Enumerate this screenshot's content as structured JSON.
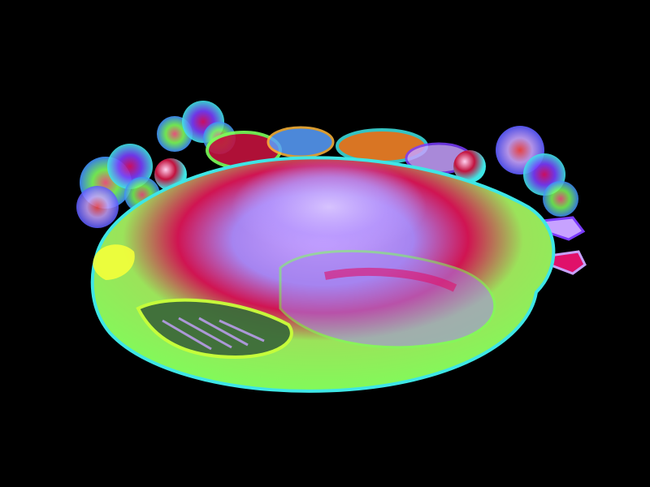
{
  "scene": {
    "subject": "roast-turkey-psychedelic-illustration",
    "background_color": "#000000",
    "palette": {
      "green": "#7CFF5A",
      "lime": "#C8FF3A",
      "magenta": "#E0106A",
      "crimson": "#C2123E",
      "lavender": "#C7A2FF",
      "violet": "#7B3CFF",
      "cyan": "#3EE6E6",
      "orange": "#FF8A2A",
      "yellow": "#F4FF3A"
    }
  }
}
